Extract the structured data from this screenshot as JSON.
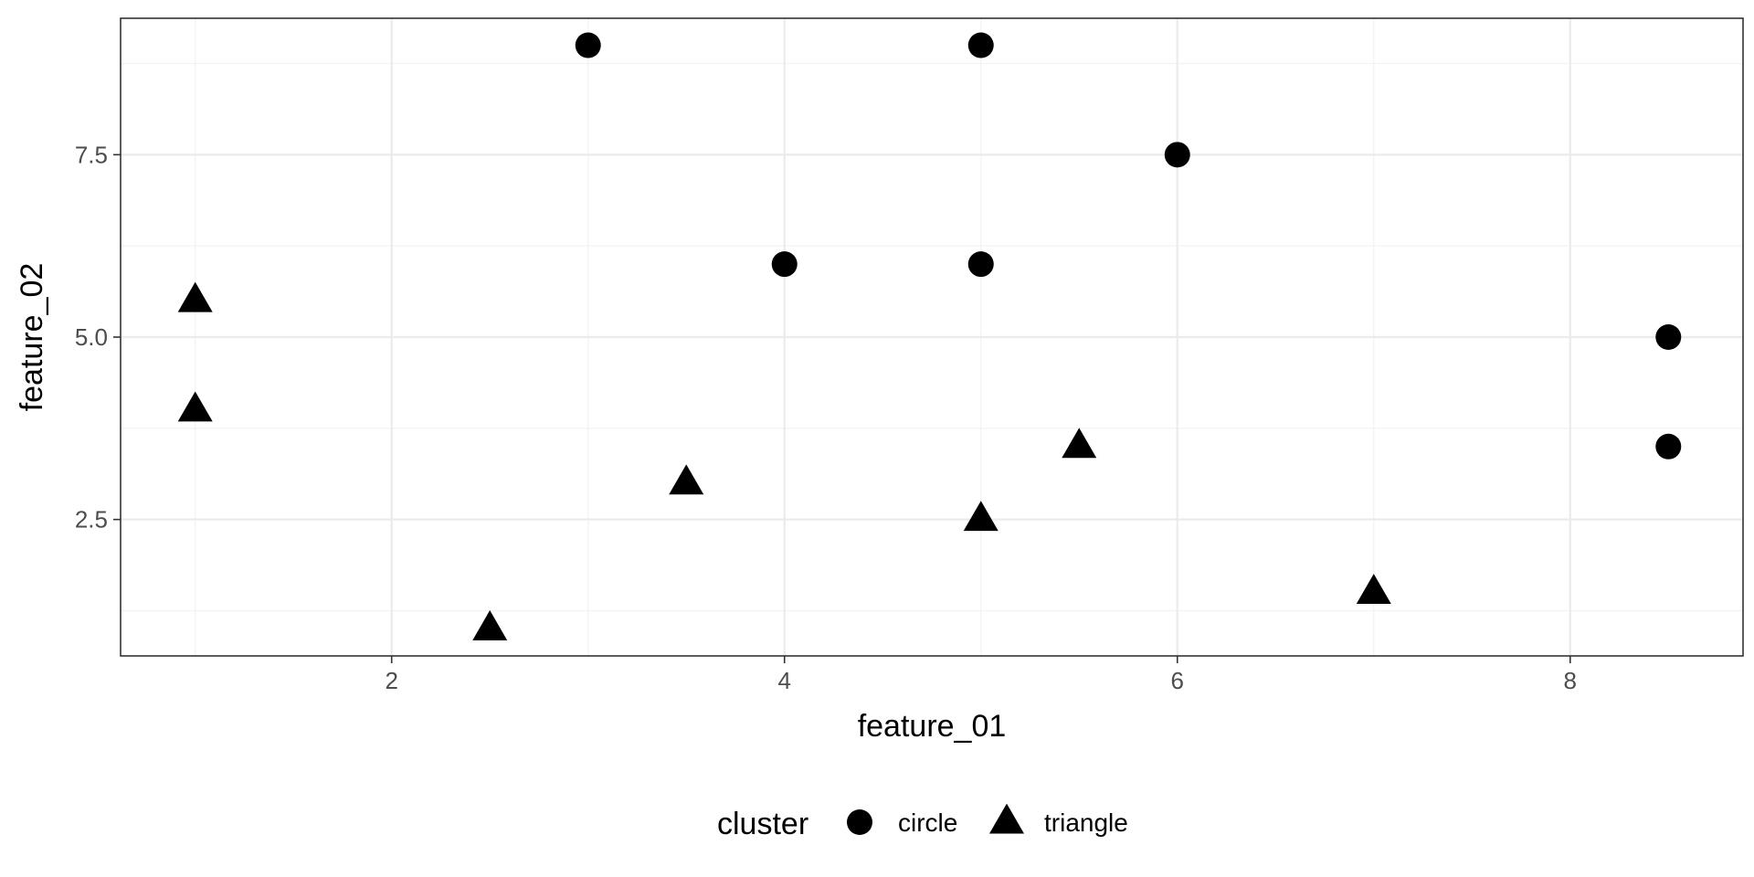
{
  "chart_data": {
    "type": "scatter",
    "xlabel": "feature_01",
    "ylabel": "feature_02",
    "xlim": [
      0.62,
      8.88
    ],
    "ylim": [
      0.63,
      9.37
    ],
    "x_ticks": [
      2,
      4,
      6,
      8
    ],
    "x_tick_labels": [
      "2",
      "4",
      "6",
      "8"
    ],
    "x_minor": [
      1,
      3,
      5,
      7
    ],
    "y_ticks": [
      2.5,
      5.0,
      7.5
    ],
    "y_tick_labels": [
      "2.5",
      "5.0",
      "7.5"
    ],
    "y_minor": [
      1.25,
      3.75,
      6.25,
      8.75
    ],
    "grid": true,
    "legend": {
      "title": "cluster",
      "position": "bottom",
      "entries": [
        {
          "label": "circle",
          "shape": "circle"
        },
        {
          "label": "triangle",
          "shape": "triangle"
        }
      ]
    },
    "series": [
      {
        "name": "circle",
        "shape": "circle",
        "color": "#000000",
        "points": [
          {
            "x": 3,
            "y": 9
          },
          {
            "x": 5,
            "y": 9
          },
          {
            "x": 6,
            "y": 7.5
          },
          {
            "x": 4,
            "y": 6
          },
          {
            "x": 5,
            "y": 6
          },
          {
            "x": 8.5,
            "y": 5
          },
          {
            "x": 8.5,
            "y": 3.5
          }
        ]
      },
      {
        "name": "triangle",
        "shape": "triangle",
        "color": "#000000",
        "points": [
          {
            "x": 1,
            "y": 5.5
          },
          {
            "x": 1,
            "y": 4
          },
          {
            "x": 3.5,
            "y": 3
          },
          {
            "x": 5.5,
            "y": 3.5
          },
          {
            "x": 5,
            "y": 2.5
          },
          {
            "x": 2.5,
            "y": 1
          },
          {
            "x": 7,
            "y": 1.5
          }
        ]
      }
    ]
  }
}
